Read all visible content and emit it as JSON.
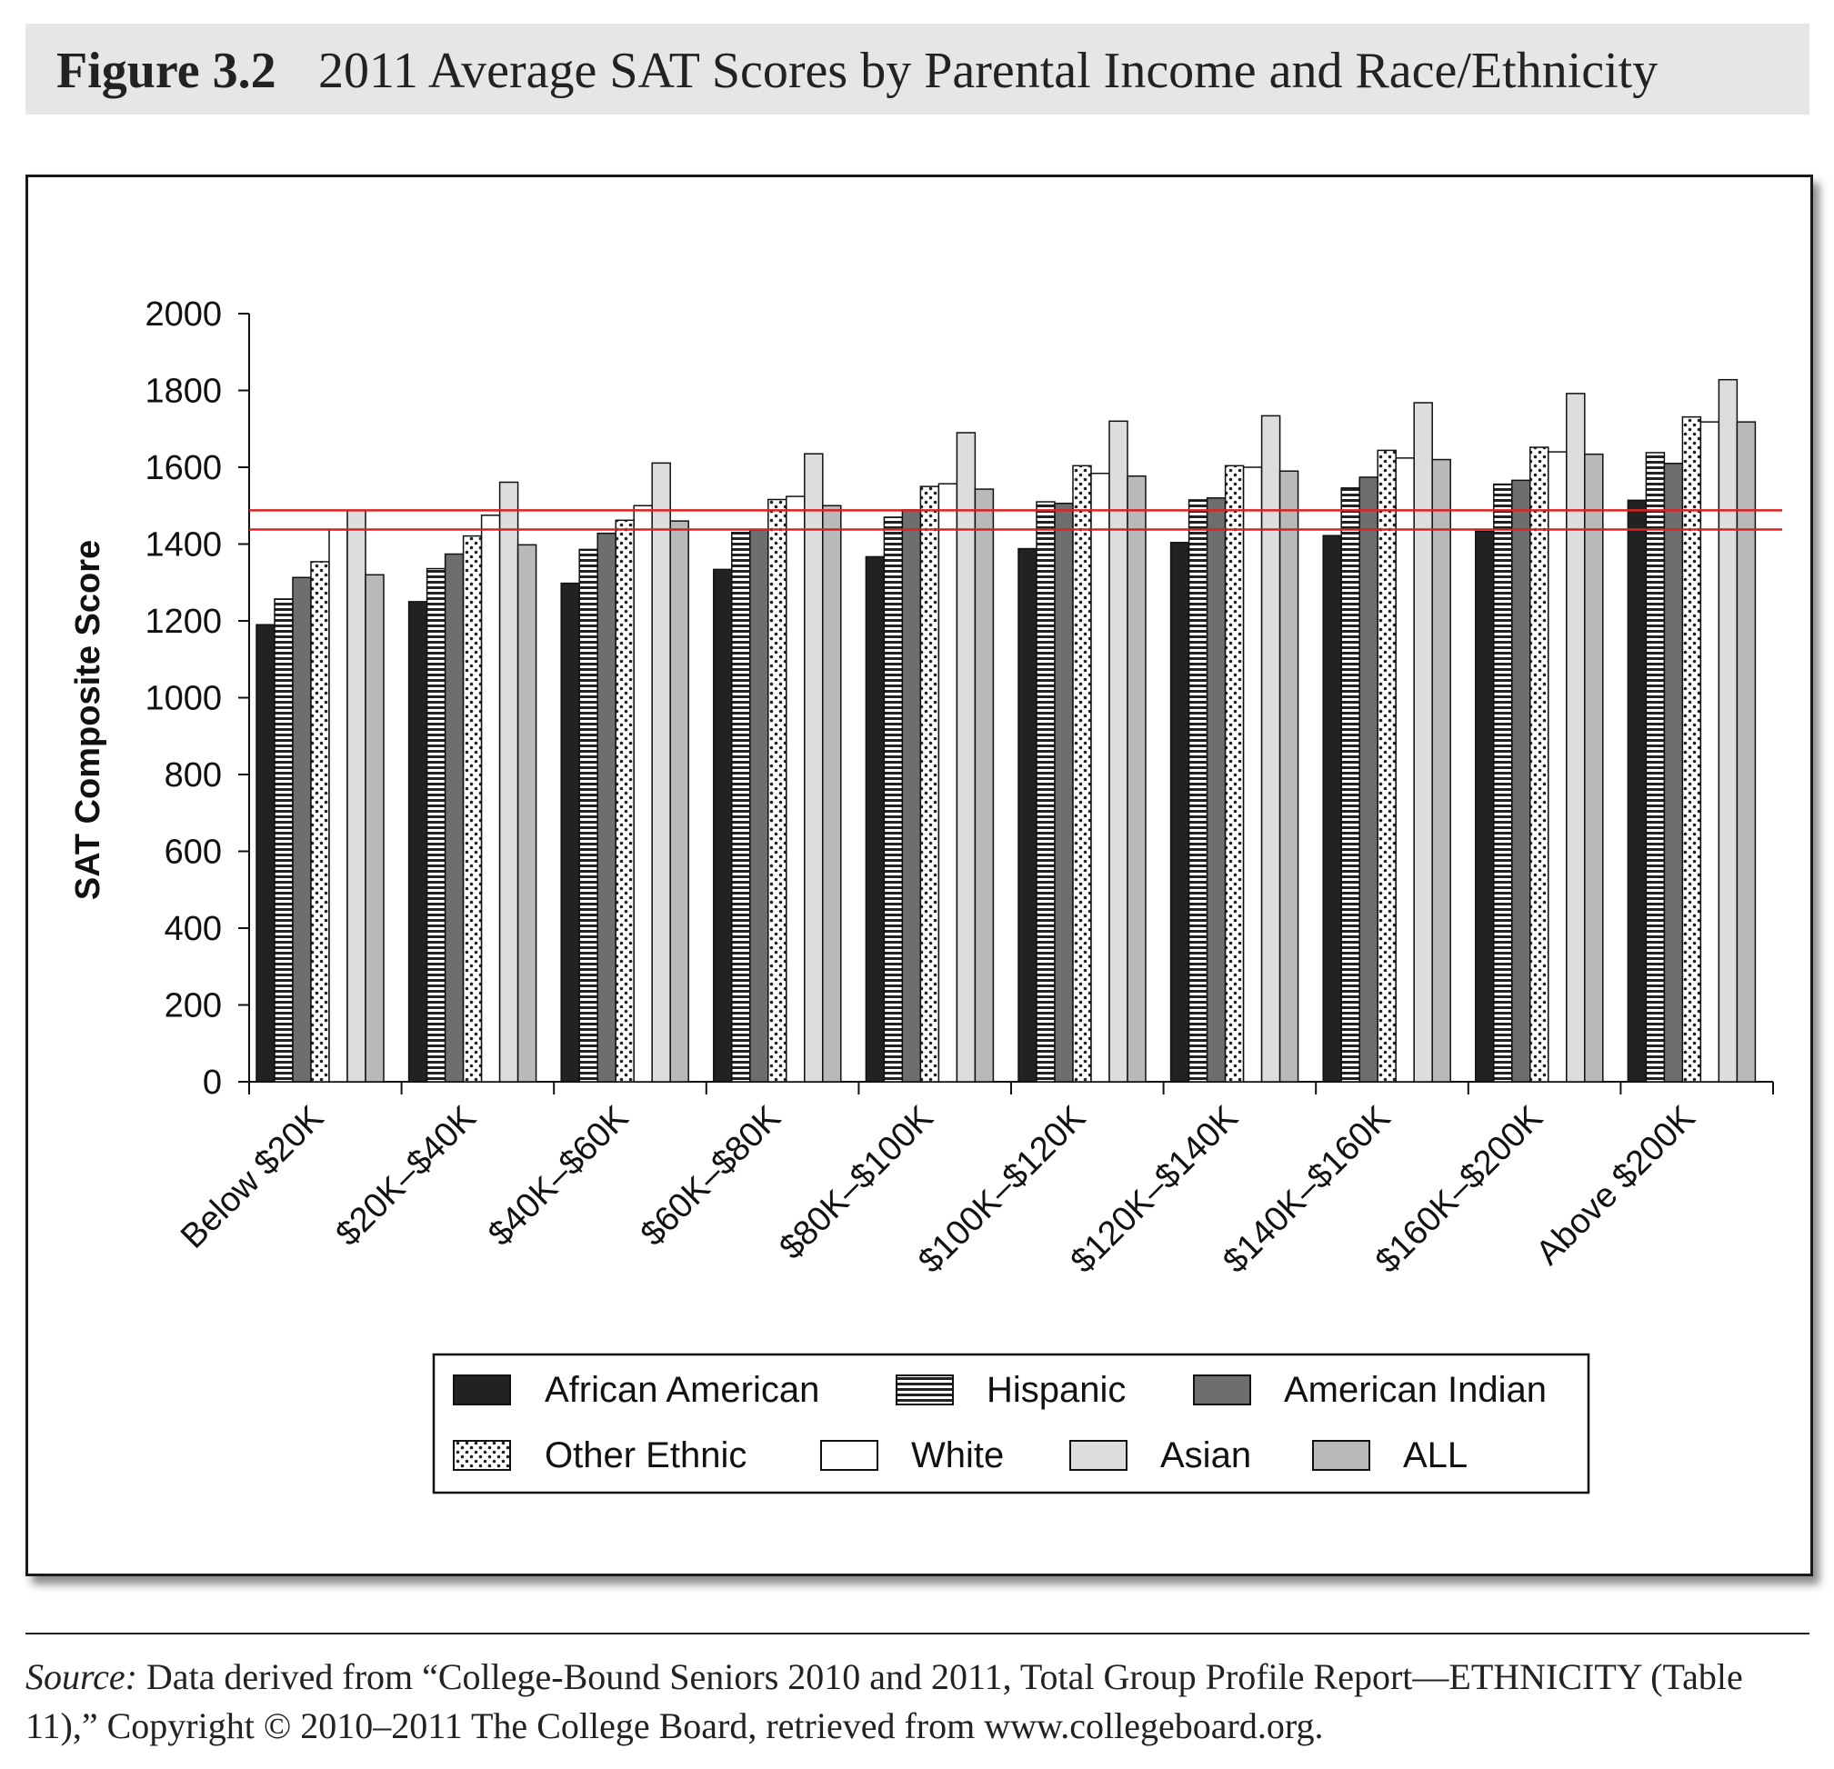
{
  "header": {
    "figure_label": "Figure 3.2",
    "title": "2011 Average SAT Scores by Parental Income and Race/Ethnicity"
  },
  "source": {
    "lead": "Source:",
    "text": " Data derived from “College-Bound Seniors 2010 and 2011, Total Group Profile Report—ETHNICITY (Table 11),” Copyright © 2010–2011 The College Board, retrieved from www.collegeboard.org."
  },
  "colors": {
    "african_american": "#222222",
    "american_indian": "#6e6e6e",
    "white": "#ffffff",
    "asian": "#dddddd",
    "all": "#b9b9b9",
    "reference_line": "#e02020"
  },
  "chart_data": {
    "type": "bar",
    "title": "2011 Average SAT Scores by Parental Income and Race/Ethnicity",
    "xlabel": "",
    "ylabel": "SAT Composite Score",
    "ylim": [
      0,
      2000
    ],
    "yticks": [
      "0",
      "200",
      "400",
      "600",
      "800",
      "1000",
      "1200",
      "1400",
      "1600",
      "1800",
      "2000"
    ],
    "grid": false,
    "categories": [
      "Below $20K",
      "$20K–$40K",
      "$40K–$60K",
      "$60K–$80K",
      "$80K–$100K",
      "$100K–$120K",
      "$120K–$140K",
      "$140K–$160K",
      "$160K–$200K",
      "Above $200K"
    ],
    "series": [
      {
        "name": "African American",
        "pattern": "solid-dark",
        "values": [
          1190,
          1250,
          1298,
          1334,
          1367,
          1388,
          1404,
          1422,
          1433,
          1514
        ]
      },
      {
        "name": "Hispanic",
        "pattern": "horizontal-lines",
        "values": [
          1257,
          1336,
          1386,
          1430,
          1470,
          1510,
          1515,
          1546,
          1556,
          1638
        ]
      },
      {
        "name": "American Indian",
        "pattern": "solid-mid",
        "values": [
          1313,
          1374,
          1428,
          1437,
          1489,
          1506,
          1520,
          1574,
          1566,
          1610
        ]
      },
      {
        "name": "Other Ethnic",
        "pattern": "dots",
        "values": [
          1354,
          1421,
          1462,
          1516,
          1550,
          1604,
          1604,
          1644,
          1652,
          1731
        ]
      },
      {
        "name": "White",
        "pattern": "solid-white",
        "values": [
          1437,
          1475,
          1500,
          1524,
          1557,
          1584,
          1600,
          1624,
          1640,
          1718
        ]
      },
      {
        "name": "Asian",
        "pattern": "solid-light",
        "values": [
          1488,
          1561,
          1611,
          1635,
          1690,
          1720,
          1734,
          1768,
          1792,
          1828
        ]
      },
      {
        "name": "ALL",
        "pattern": "solid-gray",
        "values": [
          1320,
          1398,
          1460,
          1500,
          1543,
          1577,
          1590,
          1620,
          1634,
          1718
        ]
      }
    ],
    "reference_lines": [
      1438,
      1488
    ],
    "legend": {
      "position": "bottom-center",
      "rows": [
        [
          "African American",
          "Hispanic",
          "American Indian"
        ],
        [
          "Other Ethnic",
          "White",
          "Asian",
          "ALL"
        ]
      ]
    }
  }
}
